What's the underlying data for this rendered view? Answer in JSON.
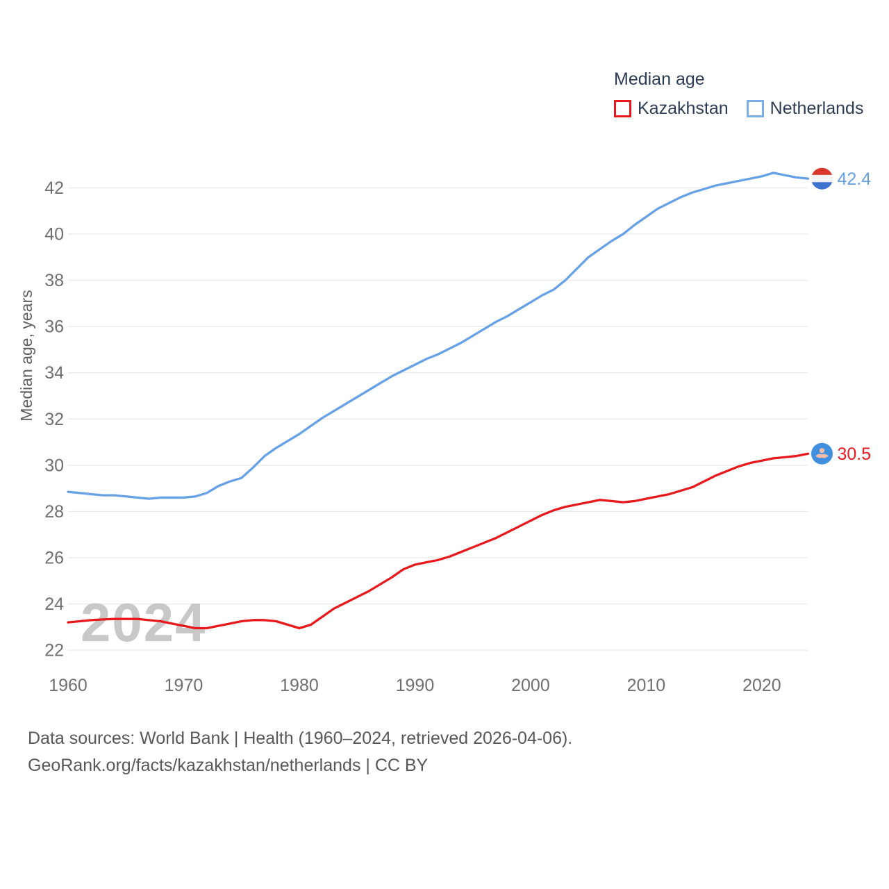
{
  "legend": {
    "title": "Median age",
    "series": [
      {
        "label": "Kazakhstan",
        "color": "#e8191d"
      },
      {
        "label": "Netherlands",
        "color": "#66a1e6"
      }
    ]
  },
  "axes": {
    "y_title": "Median age, years",
    "y_ticks": [
      22,
      24,
      26,
      28,
      30,
      32,
      34,
      36,
      38,
      40,
      42
    ],
    "x_ticks": [
      1960,
      1970,
      1980,
      1990,
      2000,
      2010,
      2020
    ]
  },
  "watermark": "2024",
  "end_labels": {
    "netherlands": "42.4",
    "kazakhstan": "30.5"
  },
  "footer": {
    "line1": "Data sources: World Bank | Health (1960–2024, retrieved 2026-04-06).",
    "line2": "GeoRank.org/facts/kazakhstan/netherlands | CC BY"
  },
  "chart_data": {
    "type": "line",
    "title": "Median age",
    "xlabel": "",
    "ylabel": "Median age, years",
    "xlim": [
      1960,
      2024
    ],
    "ylim": [
      21.5,
      43.5
    ],
    "grid": "horizontal",
    "legend_position": "top-right",
    "x": [
      1960,
      1961,
      1962,
      1963,
      1964,
      1965,
      1966,
      1967,
      1968,
      1969,
      1970,
      1971,
      1972,
      1973,
      1974,
      1975,
      1976,
      1977,
      1978,
      1979,
      1980,
      1981,
      1982,
      1983,
      1984,
      1985,
      1986,
      1987,
      1988,
      1989,
      1990,
      1991,
      1992,
      1993,
      1994,
      1995,
      1996,
      1997,
      1998,
      1999,
      2000,
      2001,
      2002,
      2003,
      2004,
      2005,
      2006,
      2007,
      2008,
      2009,
      2010,
      2011,
      2012,
      2013,
      2014,
      2015,
      2016,
      2017,
      2018,
      2019,
      2020,
      2021,
      2022,
      2023,
      2024
    ],
    "series": [
      {
        "name": "Kazakhstan",
        "color": "#e8191d",
        "end_value": 30.5,
        "values": [
          23.2,
          23.25,
          23.3,
          23.33,
          23.35,
          23.35,
          23.35,
          23.3,
          23.25,
          23.15,
          23.05,
          22.95,
          22.95,
          23.05,
          23.15,
          23.25,
          23.3,
          23.3,
          23.25,
          23.1,
          22.95,
          23.1,
          23.45,
          23.8,
          24.05,
          24.3,
          24.55,
          24.85,
          25.15,
          25.5,
          25.7,
          25.8,
          25.9,
          26.05,
          26.25,
          26.45,
          26.65,
          26.85,
          27.1,
          27.35,
          27.6,
          27.85,
          28.05,
          28.2,
          28.3,
          28.4,
          28.5,
          28.45,
          28.4,
          28.45,
          28.55,
          28.65,
          28.75,
          28.9,
          29.05,
          29.3,
          29.55,
          29.75,
          29.95,
          30.1,
          30.2,
          30.3,
          30.35,
          30.4,
          30.5
        ]
      },
      {
        "name": "Netherlands",
        "color": "#66a1e6",
        "end_value": 42.4,
        "values": [
          28.85,
          28.8,
          28.75,
          28.7,
          28.7,
          28.65,
          28.6,
          28.55,
          28.6,
          28.6,
          28.6,
          28.65,
          28.8,
          29.1,
          29.3,
          29.45,
          29.9,
          30.4,
          30.75,
          31.05,
          31.35,
          31.7,
          32.05,
          32.35,
          32.65,
          32.95,
          33.25,
          33.55,
          33.85,
          34.1,
          34.35,
          34.6,
          34.8,
          35.05,
          35.3,
          35.6,
          35.9,
          36.2,
          36.45,
          36.75,
          37.05,
          37.35,
          37.6,
          38.0,
          38.5,
          39.0,
          39.35,
          39.7,
          40.0,
          40.4,
          40.75,
          41.1,
          41.35,
          41.6,
          41.8,
          41.95,
          42.1,
          42.2,
          42.3,
          42.4,
          42.5,
          42.65,
          42.55,
          42.45,
          42.4
        ]
      }
    ]
  }
}
